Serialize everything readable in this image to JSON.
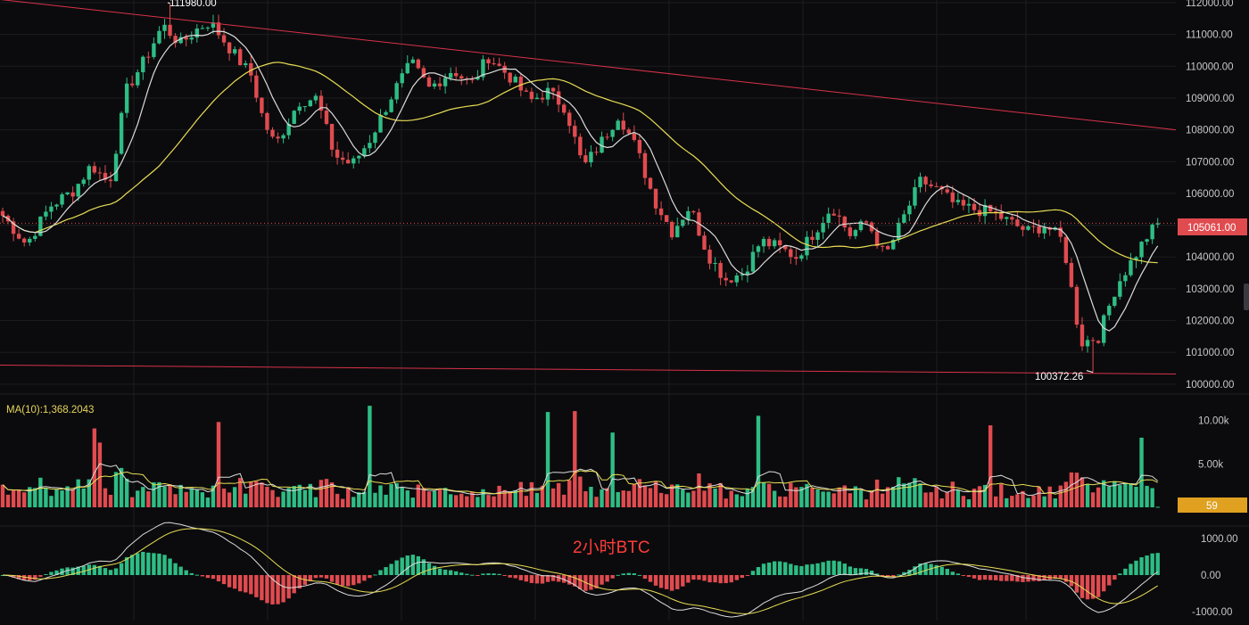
{
  "colors": {
    "background": "#0b0b0d",
    "grid": "#1c1c20",
    "up": "#2ebd85",
    "down": "#e04b4f",
    "ma_short": "#dcdcdc",
    "ma_long": "#e8dd54",
    "trend_line": "#d9324a",
    "price_badge": "#e04b4f",
    "volume_badge": "#e0a020"
  },
  "chart_data": [
    {
      "type": "candlestick",
      "title": "",
      "center_label": "2小时BTC",
      "ylim": [
        99800,
        112000
      ],
      "y_ticks": [
        "112000.00",
        "111000.00",
        "110000.00",
        "109000.00",
        "108000.00",
        "107000.00",
        "106000.00",
        "105000.00",
        "104000.00",
        "103000.00",
        "102000.00",
        "101000.00",
        "100000.00"
      ],
      "y_tick_values": [
        112000,
        111000,
        110000,
        109000,
        108000,
        107000,
        106000,
        105000,
        104000,
        103000,
        102000,
        101000,
        100000
      ],
      "current_price": "105061.00",
      "current_price_value": 105061,
      "high_annotation": {
        "text": "111980.00",
        "value": 111980
      },
      "low_annotation": {
        "text": "100372.26",
        "value": 100372.26
      },
      "trend_lines": [
        {
          "from": {
            "t": 0,
            "price": 112100
          },
          "to": {
            "t": 1,
            "price": 108000
          }
        },
        {
          "from": {
            "t": 0,
            "price": 100600
          },
          "to": {
            "t": 1,
            "price": 100320
          }
        }
      ],
      "path_keypoints": [
        [
          0,
          105300
        ],
        [
          0.02,
          104400
        ],
        [
          0.04,
          105600
        ],
        [
          0.06,
          106100
        ],
        [
          0.075,
          106900
        ],
        [
          0.09,
          106300
        ],
        [
          0.105,
          109300
        ],
        [
          0.12,
          110200
        ],
        [
          0.135,
          111300
        ],
        [
          0.15,
          110700
        ],
        [
          0.165,
          111200
        ],
        [
          0.175,
          111400
        ],
        [
          0.195,
          110400
        ],
        [
          0.21,
          109700
        ],
        [
          0.22,
          108300
        ],
        [
          0.23,
          107500
        ],
        [
          0.25,
          108900
        ],
        [
          0.265,
          109000
        ],
        [
          0.28,
          107200
        ],
        [
          0.295,
          106900
        ],
        [
          0.31,
          107700
        ],
        [
          0.33,
          109200
        ],
        [
          0.345,
          110100
        ],
        [
          0.36,
          109300
        ],
        [
          0.38,
          109900
        ],
        [
          0.395,
          109400
        ],
        [
          0.41,
          110300
        ],
        [
          0.43,
          109600
        ],
        [
          0.445,
          108900
        ],
        [
          0.46,
          109200
        ],
        [
          0.475,
          108700
        ],
        [
          0.49,
          106800
        ],
        [
          0.505,
          107600
        ],
        [
          0.52,
          108500
        ],
        [
          0.535,
          107400
        ],
        [
          0.55,
          105800
        ],
        [
          0.565,
          104800
        ],
        [
          0.58,
          105600
        ],
        [
          0.595,
          104100
        ],
        [
          0.61,
          103300
        ],
        [
          0.625,
          103500
        ],
        [
          0.64,
          104500
        ],
        [
          0.655,
          104300
        ],
        [
          0.67,
          104000
        ],
        [
          0.685,
          104800
        ],
        [
          0.7,
          105600
        ],
        [
          0.715,
          104700
        ],
        [
          0.73,
          105100
        ],
        [
          0.745,
          104000
        ],
        [
          0.76,
          105200
        ],
        [
          0.775,
          106400
        ],
        [
          0.79,
          106100
        ],
        [
          0.805,
          105600
        ],
        [
          0.82,
          105500
        ],
        [
          0.835,
          105400
        ],
        [
          0.85,
          105100
        ],
        [
          0.865,
          104800
        ],
        [
          0.88,
          105000
        ],
        [
          0.895,
          104500
        ],
        [
          0.91,
          101300
        ],
        [
          0.925,
          101500
        ],
        [
          0.94,
          103100
        ],
        [
          0.955,
          104000
        ],
        [
          0.965,
          104600
        ],
        [
          0.975,
          105061
        ]
      ]
    },
    {
      "type": "bar",
      "title": "",
      "indicator_label": "MA(10):1,368.2043",
      "ylim": [
        0,
        11000
      ],
      "y_ticks": [
        "10.00k",
        "5.00k"
      ],
      "y_tick_values": [
        10000,
        5000
      ],
      "current_volume": "59"
    },
    {
      "type": "histogram",
      "title": "",
      "ylim": [
        -1150,
        1150
      ],
      "y_ticks": [
        "1000.00",
        "0.00",
        "-1000.00"
      ],
      "y_tick_values": [
        1000,
        0,
        -1000
      ]
    }
  ]
}
